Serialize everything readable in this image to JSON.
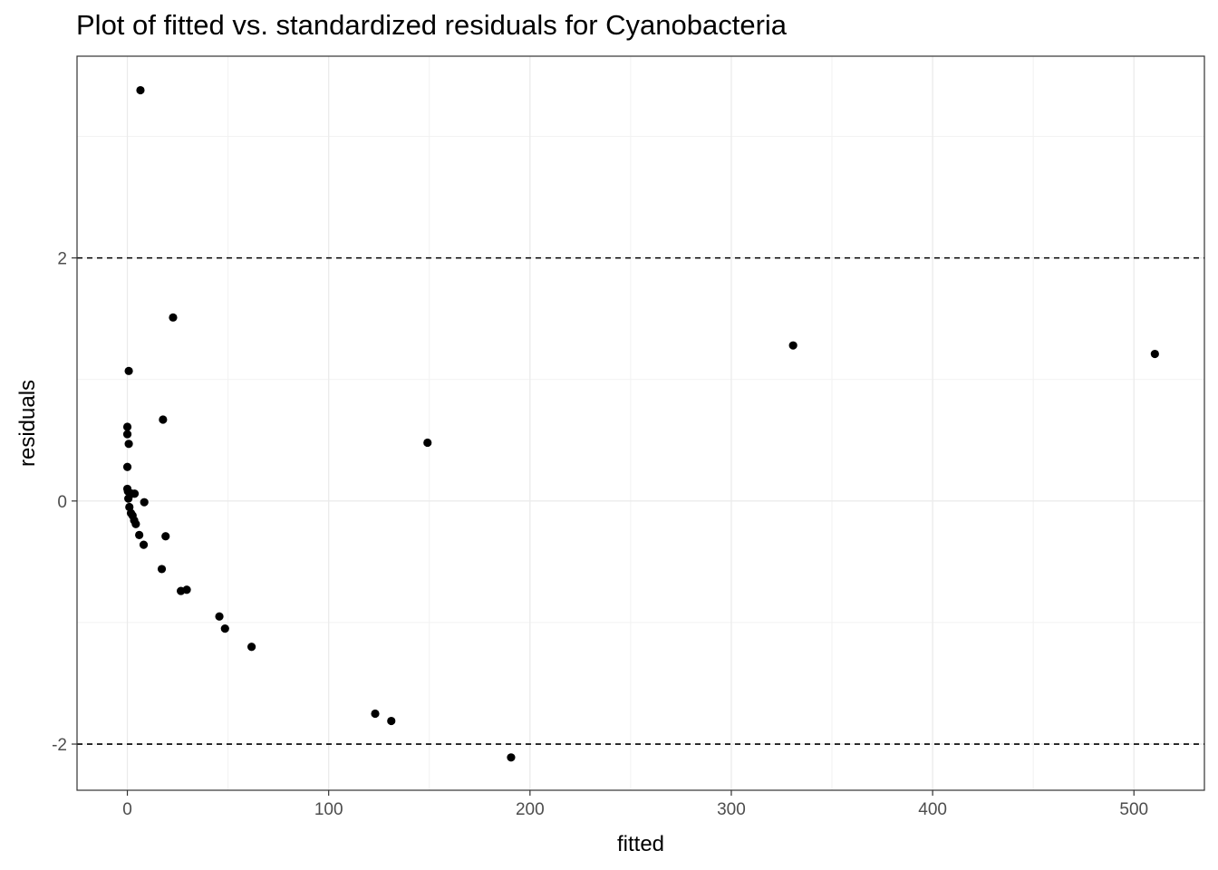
{
  "chart_data": {
    "type": "scatter",
    "title": "Plot of fitted vs. standardized residuals for Cyanobacteria",
    "xlabel": "fitted",
    "ylabel": "residuals",
    "xlim": [
      -25,
      535
    ],
    "ylim": [
      -2.38,
      3.66
    ],
    "x_ticks": [
      0,
      100,
      200,
      300,
      400,
      500
    ],
    "y_ticks": [
      -2,
      0,
      2
    ],
    "x_tick_labels": [
      "0",
      "100",
      "200",
      "300",
      "400",
      "500"
    ],
    "y_tick_labels": [
      "-2",
      "0",
      "2"
    ],
    "reference_lines": [
      2,
      -2
    ],
    "grid": true,
    "marker_color": "#000000",
    "reference_line_color": "#000000",
    "points": [
      {
        "x": 6.5,
        "y": 3.38
      },
      {
        "x": 22.7,
        "y": 1.51
      },
      {
        "x": 0.7,
        "y": 1.07
      },
      {
        "x": 17.7,
        "y": 0.67
      },
      {
        "x": 0.0,
        "y": 0.61
      },
      {
        "x": 0.0,
        "y": 0.55
      },
      {
        "x": 0.7,
        "y": 0.47
      },
      {
        "x": 0.0,
        "y": 0.28
      },
      {
        "x": 0.0,
        "y": 0.1
      },
      {
        "x": 0.3,
        "y": 0.08
      },
      {
        "x": 2.3,
        "y": 0.06
      },
      {
        "x": 3.6,
        "y": 0.06
      },
      {
        "x": 0.5,
        "y": 0.02
      },
      {
        "x": 8.4,
        "y": -0.01
      },
      {
        "x": 1.0,
        "y": -0.05
      },
      {
        "x": 1.8,
        "y": -0.1
      },
      {
        "x": 2.6,
        "y": -0.12
      },
      {
        "x": 3.4,
        "y": -0.16
      },
      {
        "x": 4.2,
        "y": -0.19
      },
      {
        "x": 5.9,
        "y": -0.28
      },
      {
        "x": 19.0,
        "y": -0.29
      },
      {
        "x": 8.1,
        "y": -0.36
      },
      {
        "x": 17.1,
        "y": -0.56
      },
      {
        "x": 26.6,
        "y": -0.74
      },
      {
        "x": 29.5,
        "y": -0.73
      },
      {
        "x": 45.7,
        "y": -0.95
      },
      {
        "x": 48.5,
        "y": -1.05
      },
      {
        "x": 61.7,
        "y": -1.2
      },
      {
        "x": 123.1,
        "y": -1.75
      },
      {
        "x": 131.1,
        "y": -1.81
      },
      {
        "x": 149.1,
        "y": 0.48
      },
      {
        "x": 190.6,
        "y": -2.11
      },
      {
        "x": 330.7,
        "y": 1.28
      },
      {
        "x": 510.4,
        "y": 1.21
      }
    ]
  }
}
